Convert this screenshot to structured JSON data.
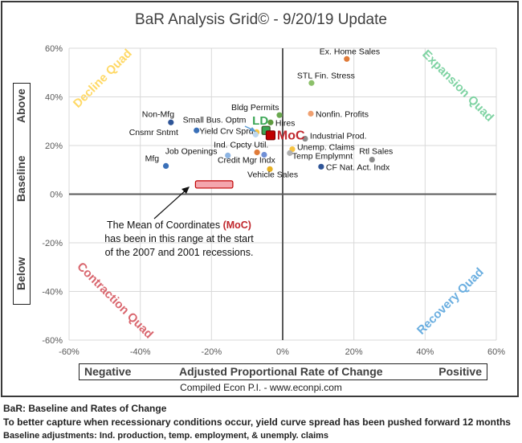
{
  "title": "BaR Analysis Grid© - 9/20/19 Update",
  "y_axis_box": {
    "top": "Above",
    "middle": "Baseline",
    "bottom": "Below"
  },
  "x_axis_box": {
    "left": "Negative",
    "middle": "Adjusted Proportional Rate of Change",
    "right": "Positive"
  },
  "credit": "Compiled Econ P.I. - www.econpi.com",
  "annotation": {
    "line1_pre": "The Mean of Coordinates ",
    "line1_bold": "(MoC)",
    "line2": "has been in this range at the start",
    "line3": "of the 2007 and 2001 recessions."
  },
  "notes": [
    "BaR: Baseline and Rates of Change",
    "To better capture when recessionary conditions occur, yield curve spread has been pushed forward 12 months",
    "Baseline adjustments: Ind. production, temp. employment, & unemply. claims"
  ],
  "quadrants": [
    {
      "name": "Decline Quad",
      "color": "#ffd966"
    },
    {
      "name": "Expansion Quad",
      "color": "#7fd3a3"
    },
    {
      "name": "Contraction Quad",
      "color": "#d9666e"
    },
    {
      "name": "Recovery Quad",
      "color": "#6aaee0"
    }
  ],
  "chart_data": {
    "type": "scatter",
    "title": "BaR Analysis Grid© - 9/20/19 Update",
    "xlabel": "Adjusted Proportional Rate of Change",
    "ylabel": "Baseline",
    "xlim": [
      -60,
      60
    ],
    "ylim": [
      -60,
      60
    ],
    "x_ticks": [
      "-60%",
      "-40%",
      "-20%",
      "0%",
      "20%",
      "40%",
      "60%"
    ],
    "y_ticks": [
      "60%",
      "40%",
      "20%",
      "0%",
      "-20%",
      "-40%",
      "-60%"
    ],
    "grid": true,
    "points": [
      {
        "label": "Ex. Home Sales",
        "x": 18.0,
        "y": 55.6,
        "color": "#e07b39"
      },
      {
        "label": "STL Fin. Stress",
        "x": 8.1,
        "y": 45.7,
        "color": "#8cc06a"
      },
      {
        "label": "Nonfin. Profits",
        "x": 7.9,
        "y": 33.1,
        "color": "#f0a070"
      },
      {
        "label": "Bldg Permits",
        "x": -0.9,
        "y": 32.5,
        "color": "#6aa84f"
      },
      {
        "label": "Hires",
        "x": -3.4,
        "y": 29.5,
        "color": "#5e9a3e"
      },
      {
        "label": "Industrial Prod.",
        "x": 6.3,
        "y": 22.8,
        "color": "#8c8c8c"
      },
      {
        "label": "Unemp. Claims",
        "x": 2.7,
        "y": 18.5,
        "color": "#f6c342"
      },
      {
        "label": "Temp Emplymnt",
        "x": 2.0,
        "y": 16.9,
        "color": "#b0b0b0"
      },
      {
        "label": "Rtl Sales",
        "x": 25.1,
        "y": 14.2,
        "color": "#8c8c8c"
      },
      {
        "label": "CF Nat. Act. Indx",
        "x": 10.8,
        "y": 11.3,
        "color": "#2f5597"
      },
      {
        "label": "Vehicle Sales",
        "x": -3.6,
        "y": 10.3,
        "color": "#e8b020"
      },
      {
        "label": "Ind. Cpcty Util.",
        "x": -7.2,
        "y": 17.2,
        "color": "#e07b39"
      },
      {
        "label": "Credit Mgr Indx",
        "x": -5.2,
        "y": 16.2,
        "color": "#6f8fd6"
      },
      {
        "label": "Job Openings",
        "x": -15.4,
        "y": 15.9,
        "color": "#8db4e2"
      },
      {
        "label": "Mfg",
        "x": -32.8,
        "y": 11.6,
        "color": "#3a70b8"
      },
      {
        "label": "Non-Mfg",
        "x": -31.4,
        "y": 29.5,
        "color": "#2f5597"
      },
      {
        "label": "Cnsmr Sntmt",
        "x": -24.2,
        "y": 26.2,
        "color": "#3a70b8"
      },
      {
        "label": "Small Bus. Optm",
        "x": -7.3,
        "y": 25.5,
        "color": "#f6c342"
      },
      {
        "label": "Yield Crv Sprd",
        "x": -7.6,
        "y": 24.5,
        "color": "#bdd7ee"
      }
    ],
    "markers": [
      {
        "label": "LD",
        "x": -4.7,
        "y": 26.2,
        "color": "#3aa655",
        "text_color": "#3aa655"
      },
      {
        "label": "MoC",
        "x": -3.4,
        "y": 24.2,
        "color": "#c00000",
        "text_color": "#c0272d"
      }
    ],
    "recession_range": {
      "x_from": -24.5,
      "x_to": -14.0,
      "y_from": 2.5,
      "y_to": 5.5,
      "color": "#f4a6ad"
    }
  }
}
